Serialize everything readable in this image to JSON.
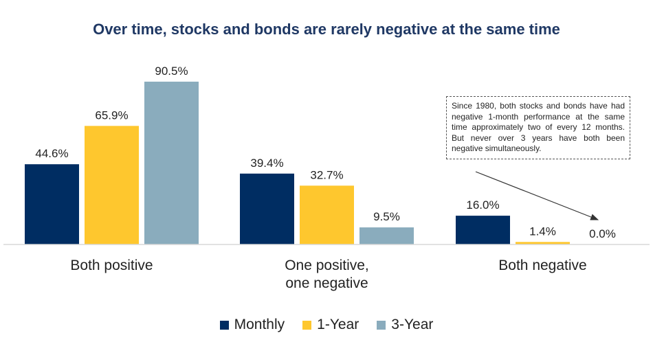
{
  "chart_data": {
    "type": "bar",
    "title": "Over time, stocks and bonds are rarely negative at the same time",
    "categories": [
      "Both positive",
      "One positive,\none negative",
      "Both negative"
    ],
    "series": [
      {
        "name": "Monthly",
        "values": [
          44.6,
          39.4,
          16.0
        ],
        "labels": [
          "44.6%",
          "39.4%",
          "16.0%"
        ],
        "color": "#002d62"
      },
      {
        "name": "1-Year",
        "values": [
          65.9,
          32.7,
          1.4
        ],
        "labels": [
          "65.9%",
          "32.7%",
          "1.4%"
        ],
        "color": "#fec72e"
      },
      {
        "name": "3-Year",
        "values": [
          90.5,
          9.5,
          0.0
        ],
        "labels": [
          "90.5%",
          "9.5%",
          "0.0%"
        ],
        "color": "#8aacbd"
      }
    ],
    "ylim": [
      0,
      100
    ],
    "grid": false,
    "legend_position": "bottom",
    "annotation": "Since 1980, both stocks and bonds have had negative 1-month performance at the same time approximately two of every 12 months. But never over 3 years have both been negative simultaneously."
  }
}
